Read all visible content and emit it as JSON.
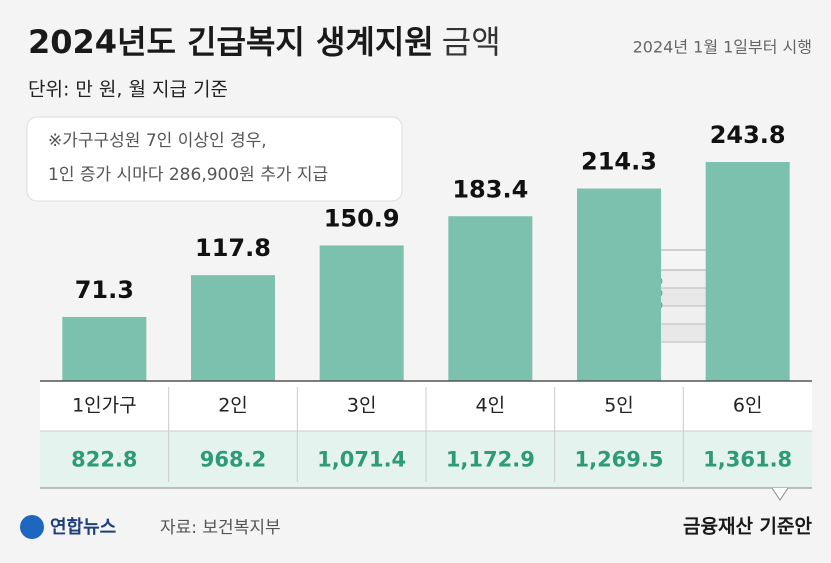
{
  "chart_data": {
    "type": "bar",
    "title": "2024년도 긴급복지 생계지원",
    "title_suffix": "금액",
    "date_note": "2024년 1월 1일부터 시행",
    "subtitle": "단위: 만 원, 월 지급 기준",
    "note": [
      "※가구구성원 7인 이상인 경우,",
      "1인 증가 시마다 286,900원 추가 지급"
    ],
    "categories": [
      "1인가구",
      "2인",
      "3인",
      "4인",
      "5인",
      "6인"
    ],
    "values": [
      71.3,
      117.8,
      150.9,
      183.4,
      214.3,
      243.8
    ],
    "color": "#7cc0ae",
    "table_row": {
      "label": "금융재산 기준안",
      "values": [
        822.8,
        968.2,
        1071.4,
        1172.9,
        1269.5,
        1361.8
      ],
      "value_labels": [
        "822.8",
        "968.2",
        "1,071.4",
        "1,172.9",
        "1,269.5",
        "1,361.8"
      ],
      "color": "#2d9a78"
    },
    "source": "자료: 보건복지부",
    "logo": "연합뉴스"
  }
}
